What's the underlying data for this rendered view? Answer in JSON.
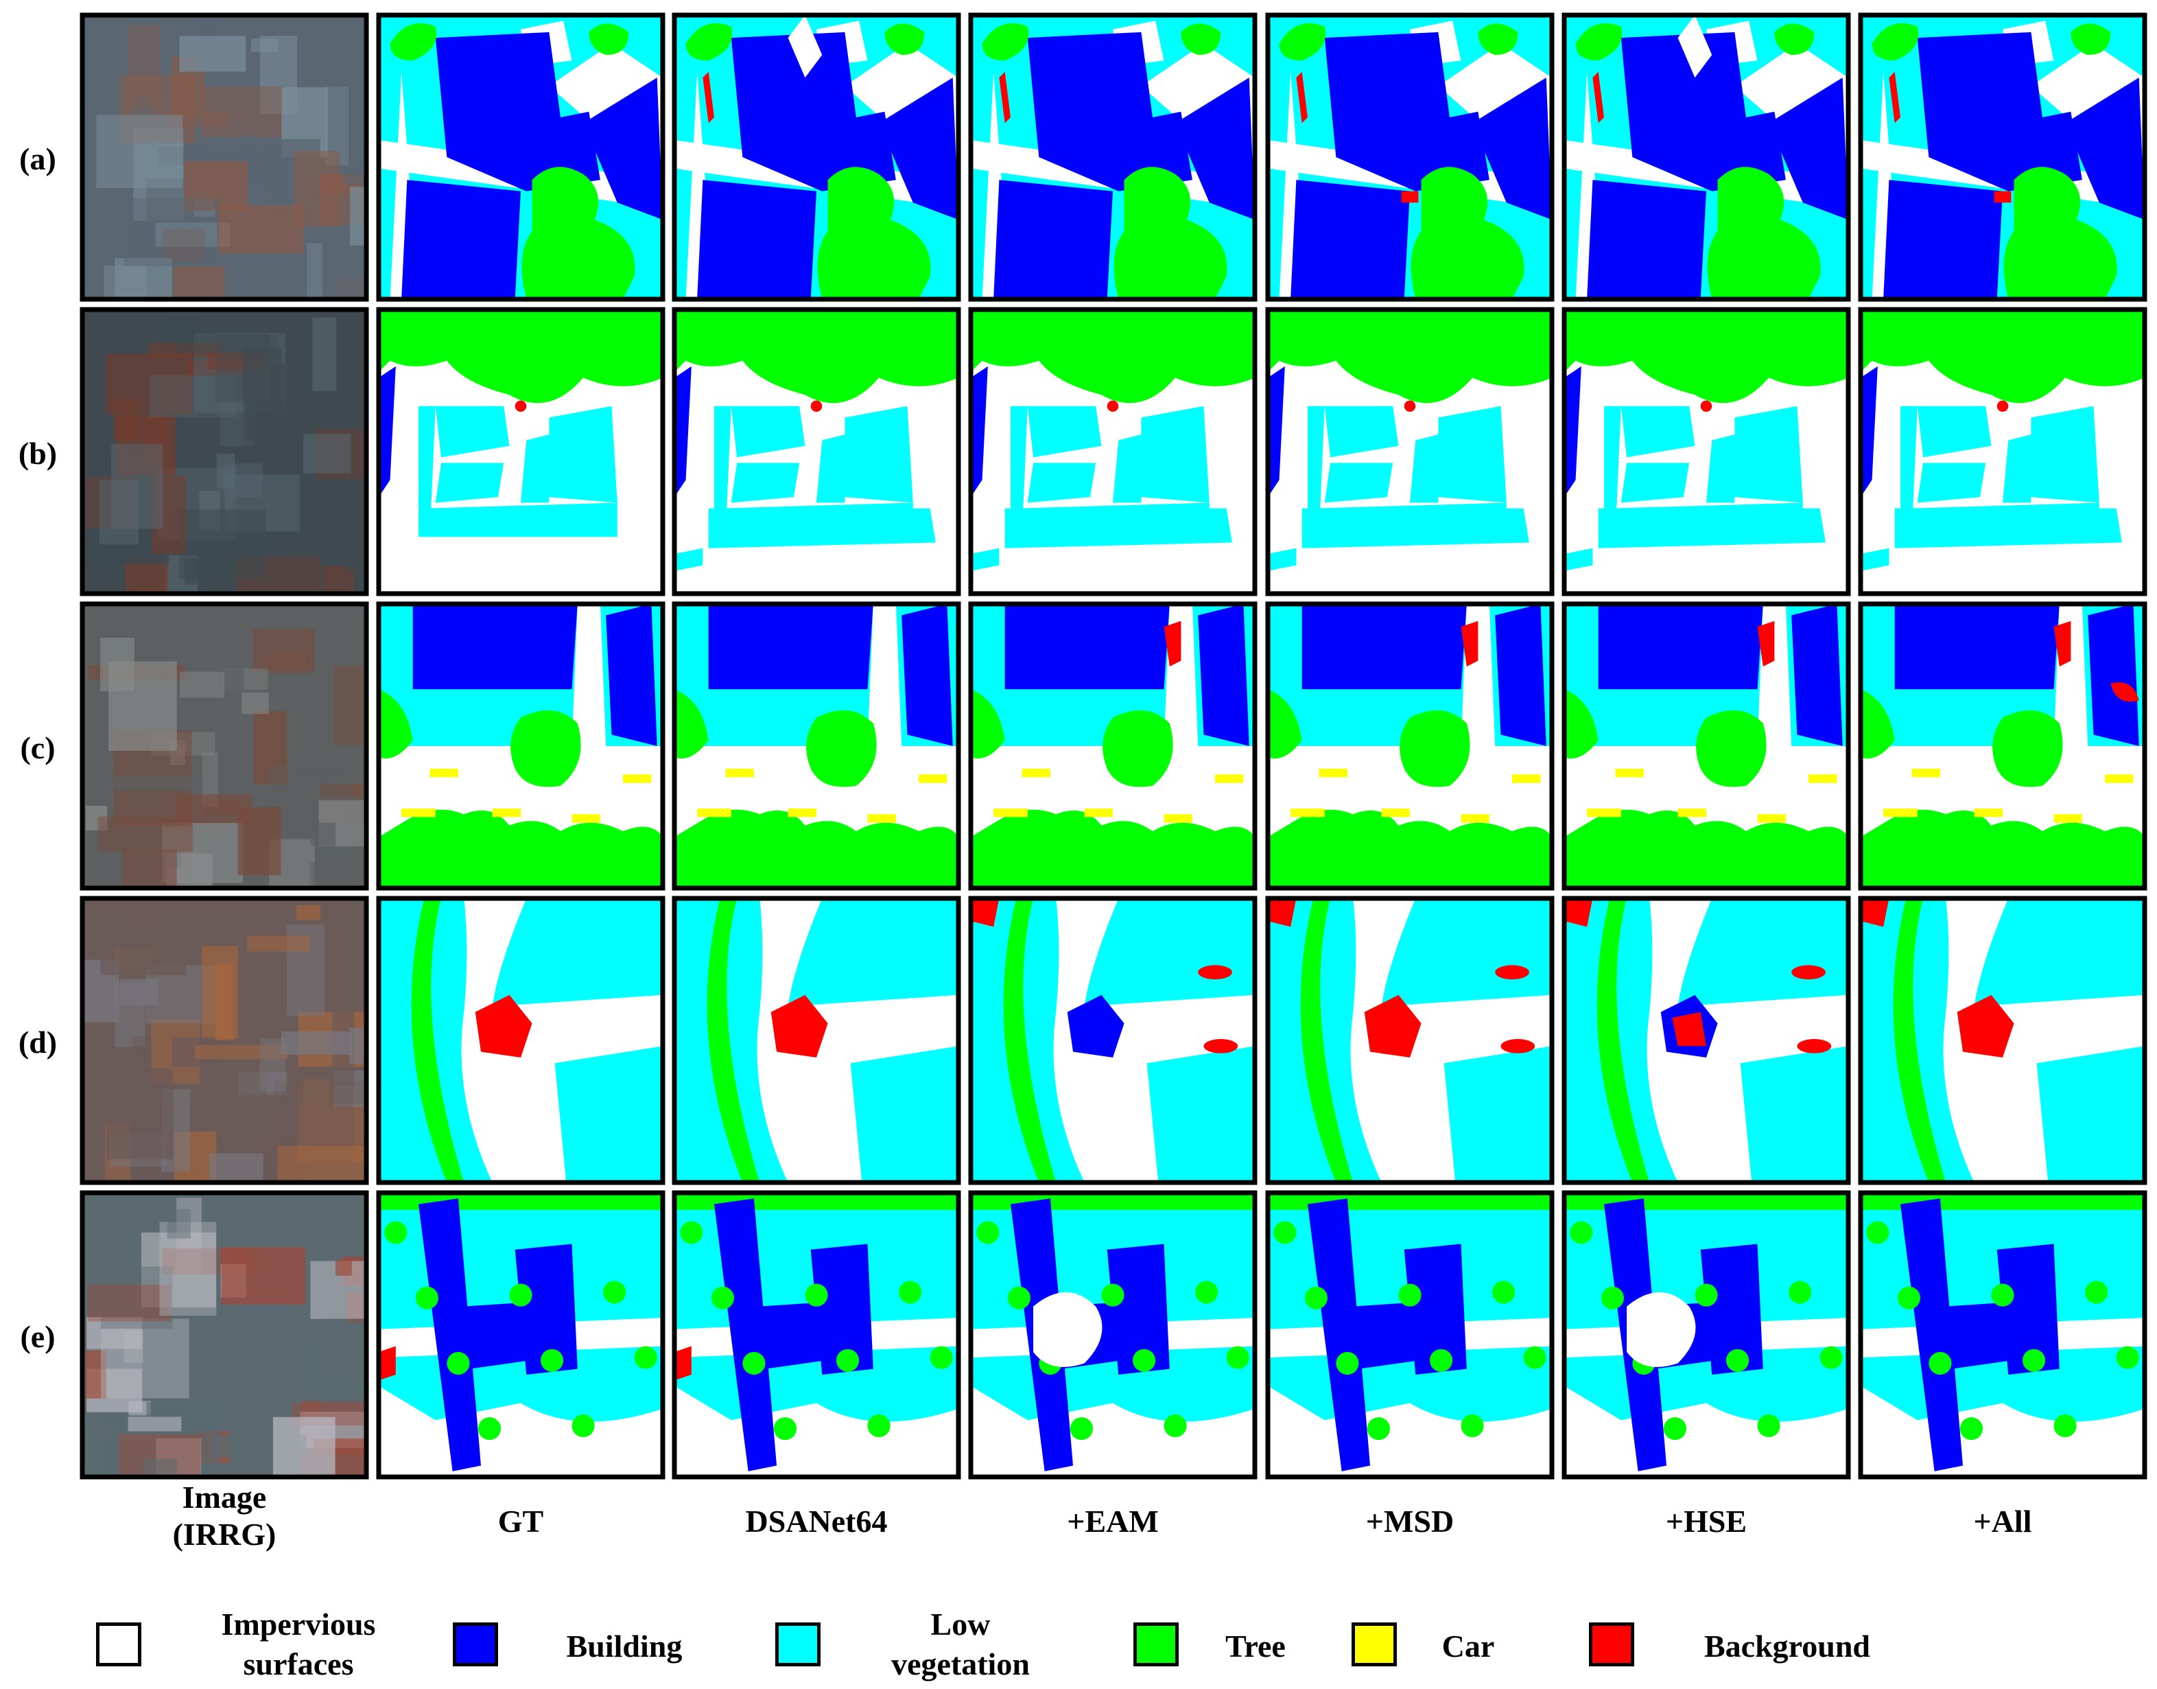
{
  "figure": {
    "rows": [
      "(a)",
      "(b)",
      "(c)",
      "(d)",
      "(e)"
    ],
    "columns": [
      "Image\n(IRRG)",
      "GT",
      "DSANet64",
      "+EAM",
      "+MSD",
      "+HSE",
      "+All"
    ]
  },
  "palette": {
    "impervious": "#ffffff",
    "building": "#0000ff",
    "lowveg": "#00ffff",
    "tree": "#00ff00",
    "car": "#ffff00",
    "background": "#ff0000"
  },
  "legend": [
    {
      "key": "impervious",
      "label": "Impervious\nsurfaces",
      "color": "#ffffff"
    },
    {
      "key": "building",
      "label": "Building",
      "color": "#0000ff"
    },
    {
      "key": "lowveg",
      "label": "Low\nvegetation",
      "color": "#00ffff"
    },
    {
      "key": "tree",
      "label": "Tree",
      "color": "#00ff00"
    },
    {
      "key": "car",
      "label": "Car",
      "color": "#ffff00"
    },
    {
      "key": "background",
      "label": "Background",
      "color": "#ff0000"
    }
  ]
}
